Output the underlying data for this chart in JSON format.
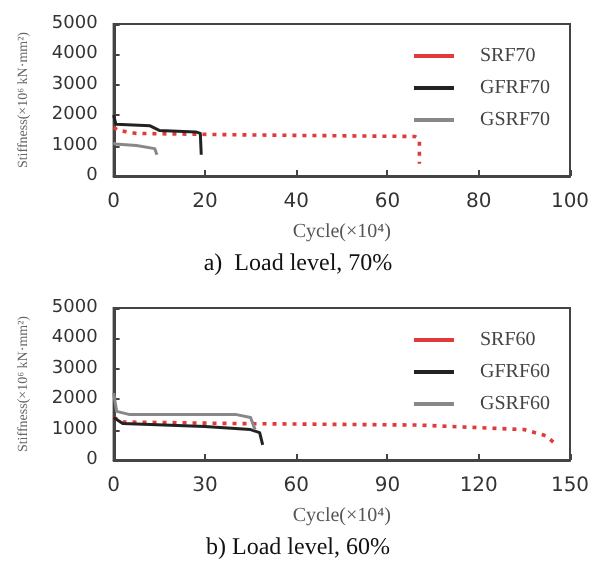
{
  "chart_data": [
    {
      "type": "line",
      "title": "a)  Load level, 70%",
      "xlabel": "Cycle(×10⁴)",
      "ylabel": "Stiffness(×10⁶ kN·mm²)",
      "xlim": [
        0,
        100
      ],
      "xticks": [
        0,
        20,
        40,
        60,
        80,
        100
      ],
      "ylim": [
        0,
        5000
      ],
      "yticks": [
        0,
        1000,
        2000,
        3000,
        4000,
        5000
      ],
      "legend": "top right",
      "marker": "none",
      "series": [
        {
          "name": "SRF70",
          "color": "#e03a3a",
          "line_style": "dotted",
          "x": [
            0,
            1,
            5,
            30,
            66,
            67,
            67
          ],
          "values": [
            1600,
            1500,
            1400,
            1350,
            1300,
            1200,
            400
          ]
        },
        {
          "name": "GFRF70",
          "color": "#222222",
          "line_style": "solid",
          "x": [
            0,
            0.5,
            8,
            10,
            18,
            19,
            19.2
          ],
          "values": [
            2000,
            1700,
            1650,
            1500,
            1450,
            1400,
            700
          ]
        },
        {
          "name": "GSRF70",
          "color": "#888888",
          "line_style": "solid",
          "x": [
            0,
            0.3,
            5,
            9,
            9.5
          ],
          "values": [
            1100,
            1050,
            1000,
            900,
            700
          ]
        }
      ]
    },
    {
      "type": "line",
      "title": "b) Load level, 60%",
      "xlabel": "Cycle(×10⁴)",
      "ylabel": "Stiffness(×10⁶ kN·mm²)",
      "xlim": [
        0,
        150
      ],
      "xticks": [
        0,
        30,
        60,
        90,
        120,
        150
      ],
      "ylim": [
        0,
        5000
      ],
      "yticks": [
        0,
        1000,
        2000,
        3000,
        4000,
        5000
      ],
      "legend": "top right",
      "marker": "none",
      "series": [
        {
          "name": "SRF60",
          "color": "#e03a3a",
          "line_style": "dotted",
          "x": [
            0,
            3,
            40,
            100,
            135,
            142,
            145
          ],
          "values": [
            1400,
            1250,
            1200,
            1150,
            1000,
            800,
            550
          ]
        },
        {
          "name": "GFRF60",
          "color": "#222222",
          "line_style": "solid",
          "x": [
            0,
            3,
            30,
            45,
            48,
            49
          ],
          "values": [
            1400,
            1200,
            1100,
            1000,
            900,
            500
          ]
        },
        {
          "name": "GSRF60",
          "color": "#888888",
          "line_style": "solid",
          "x": [
            0,
            1,
            5,
            40,
            45,
            46.5
          ],
          "values": [
            2200,
            1600,
            1500,
            1500,
            1400,
            1000
          ]
        }
      ]
    }
  ]
}
